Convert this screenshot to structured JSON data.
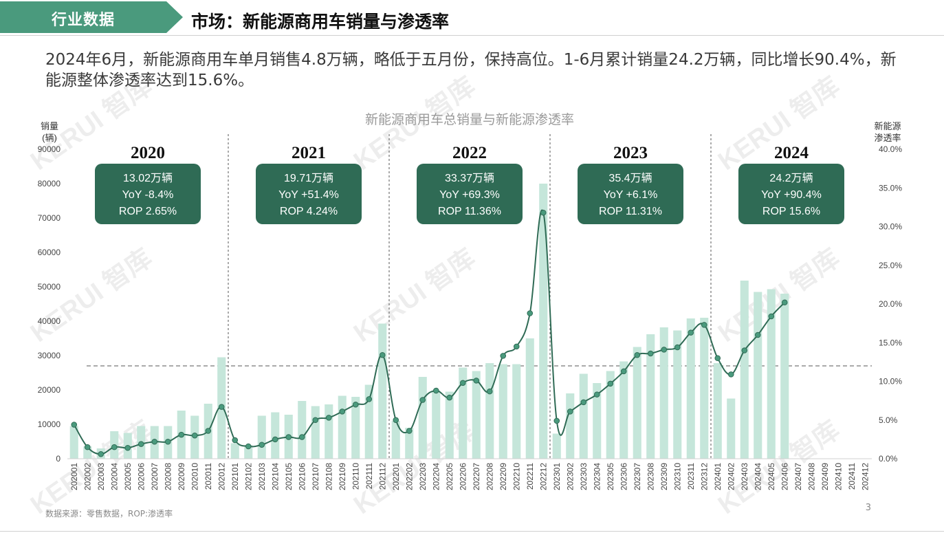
{
  "header": {
    "section_label": "行业数据",
    "title": "市场：新能源商用车销量与渗透率"
  },
  "summary": "2024年6月，新能源商用车单月销售4.8万辆，略低于五月份，保持高位。1-6月累计销量24.2万辆，同比增长90.4%，新能源整体渗透率达到15.6%。",
  "footer": {
    "source": "数据来源：零售数据，ROP:渗透率",
    "page_number": "3"
  },
  "watermark": "KERUI 智库",
  "colors": {
    "brand": "#3a7a63",
    "bar": "#c5e6da",
    "line": "#2f6b55",
    "box": "#2f6b55",
    "tag": "#4a9a7d"
  },
  "chart_data": {
    "type": "bar+line",
    "title": "新能源商用车总销量与新能源渗透率",
    "y_left_label": [
      "销量",
      "(辆)"
    ],
    "y_right_label": [
      "新能源",
      "渗透率"
    ],
    "y_left_range": [
      0,
      90000
    ],
    "y_left_ticks": [
      "90000",
      "80000",
      "70000",
      "60000",
      "50000",
      "40000",
      "30000",
      "20000",
      "10000",
      "0"
    ],
    "y_right_range": [
      0,
      0.4
    ],
    "y_right_ticks": [
      "40.0%",
      "35.0%",
      "30.0%",
      "25.0%",
      "20.0%",
      "15.0%",
      "10.0%",
      "5.0%",
      "0.0%"
    ],
    "reference_line_pct": 0.12,
    "categories": [
      "202001",
      "202002",
      "202003",
      "202004",
      "202005",
      "202006",
      "202007",
      "202008",
      "202009",
      "202010",
      "202011",
      "202012",
      "202101",
      "202102",
      "202103",
      "202104",
      "202105",
      "202106",
      "202107",
      "202108",
      "202109",
      "202110",
      "202111",
      "202112",
      "202201",
      "202202",
      "202203",
      "202204",
      "202205",
      "202206",
      "202207",
      "202208",
      "202209",
      "202210",
      "202211",
      "202212",
      "202301",
      "202302",
      "202303",
      "202304",
      "202305",
      "202306",
      "202307",
      "202308",
      "202309",
      "202310",
      "202311",
      "202312",
      "202401",
      "202402",
      "202403",
      "202404",
      "202405",
      "202406",
      "202407",
      "202408",
      "202409",
      "202410",
      "202411",
      "202412"
    ],
    "series": [
      {
        "name": "销量",
        "kind": "bar",
        "values": [
          9500,
          3600,
          3000,
          8000,
          7500,
          9500,
          9500,
          9500,
          14000,
          12500,
          16000,
          29500,
          4500,
          4000,
          12500,
          13500,
          12800,
          16800,
          15300,
          15800,
          18300,
          18000,
          21500,
          39300,
          11000,
          9000,
          23800,
          19800,
          19500,
          26500,
          25500,
          27800,
          27500,
          27500,
          35000,
          80000,
          7300,
          19000,
          24700,
          22000,
          25500,
          28300,
          32500,
          36200,
          38200,
          37300,
          40800,
          41000,
          27800,
          17500,
          51800,
          48500,
          49300,
          48000,
          null,
          null,
          null,
          null,
          null,
          null
        ]
      },
      {
        "name": "渗透率",
        "kind": "line",
        "values": [
          0.044,
          0.015,
          0.006,
          0.015,
          0.014,
          0.019,
          0.022,
          0.022,
          0.031,
          0.03,
          0.036,
          0.067,
          0.024,
          0.016,
          0.018,
          0.025,
          0.028,
          0.028,
          0.05,
          0.053,
          0.061,
          0.07,
          0.077,
          0.134,
          0.05,
          0.036,
          0.076,
          0.088,
          0.079,
          0.098,
          0.101,
          0.087,
          0.133,
          0.145,
          0.188,
          0.318,
          0.049,
          0.061,
          0.073,
          0.083,
          0.097,
          0.113,
          0.134,
          0.136,
          0.141,
          0.144,
          0.163,
          0.173,
          0.13,
          0.109,
          0.14,
          0.16,
          0.184,
          0.202,
          null,
          null,
          null,
          null,
          null,
          null
        ]
      }
    ],
    "year_groups": [
      {
        "year": "2020",
        "volume": "13.02万辆",
        "yoy": "YoY -8.4%",
        "rop": "ROP 2.65%"
      },
      {
        "year": "2021",
        "volume": "19.71万辆",
        "yoy": "YoY +51.4%",
        "rop": "ROP 4.24%"
      },
      {
        "year": "2022",
        "volume": "33.37万辆",
        "yoy": "YoY +69.3%",
        "rop": "ROP 11.36%"
      },
      {
        "year": "2023",
        "volume": "35.4万辆",
        "yoy": "YoY +6.1%",
        "rop": "ROP 11.31%"
      },
      {
        "year": "2024",
        "volume": "24.2万辆",
        "yoy": "YoY +90.4%",
        "rop": "ROP 15.6%"
      }
    ]
  }
}
